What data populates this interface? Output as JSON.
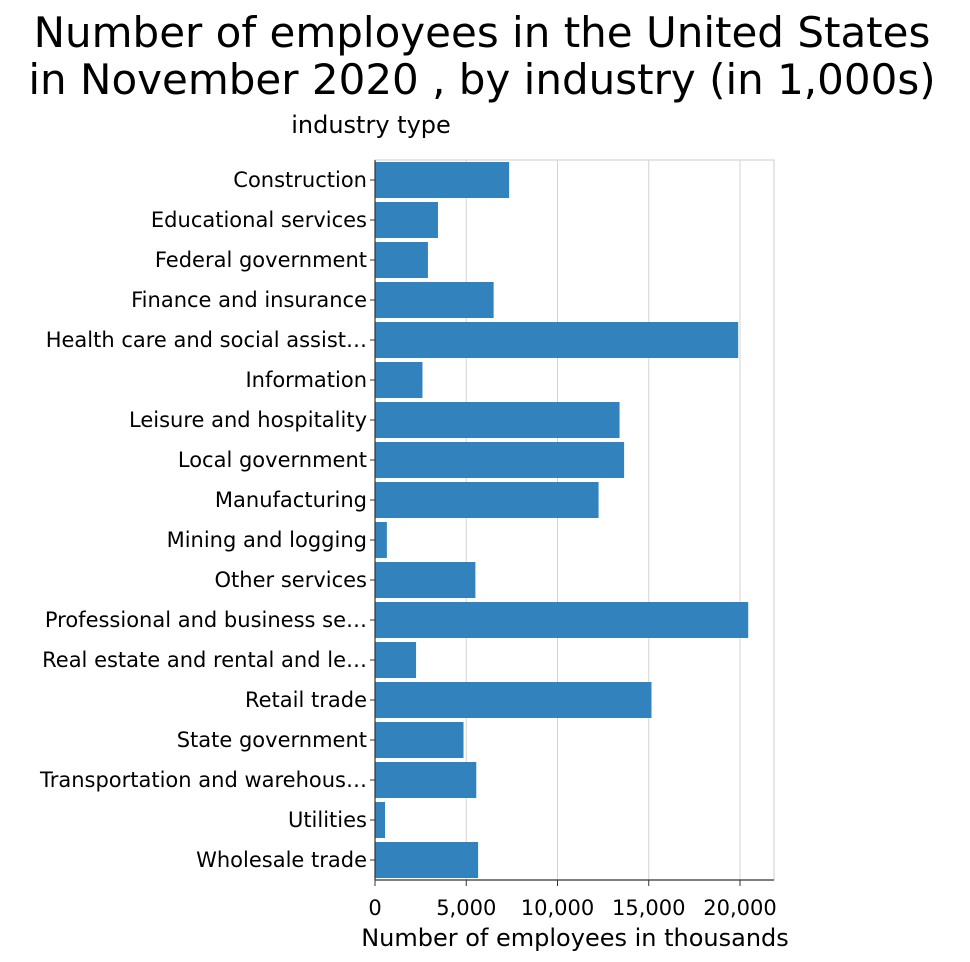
{
  "chart_data": {
    "type": "bar",
    "orientation": "horizontal",
    "title_lines": [
      "Number of employees in the United States",
      "in November 2020 , by industry (in 1,000s)"
    ],
    "xlabel": "Number of employees in thousands",
    "ylabel": "industry type",
    "xlim": [
      0,
      22000
    ],
    "xticks": [
      0,
      5000,
      10000,
      15000,
      20000
    ],
    "xtick_labels": [
      "0",
      "5,000",
      "10,000",
      "15,000",
      "20,000"
    ],
    "grid": "vertical",
    "bar_color": "#3182bd",
    "categories": [
      "Construction",
      "Educational services",
      "Federal government",
      "Finance and insurance",
      "Health care and social assist…",
      "Information",
      "Leisure and hospitality",
      "Local government",
      "Manufacturing",
      "Mining and logging",
      "Other services",
      "Professional and business se…",
      "Real estate and rental and le…",
      "Retail trade",
      "State government",
      "Transportation and warehous…",
      "Utilities",
      "Wholesale trade"
    ],
    "values": [
      7350,
      3450,
      2900,
      6500,
      19900,
      2600,
      13400,
      13650,
      12250,
      650,
      5500,
      20450,
      2250,
      15150,
      4850,
      5550,
      550,
      5650
    ]
  }
}
